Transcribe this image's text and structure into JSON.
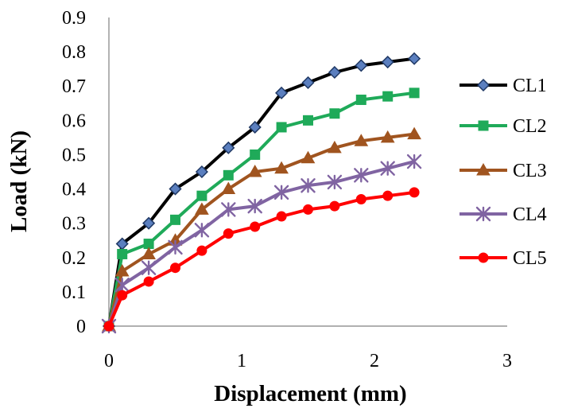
{
  "chart_data": {
    "type": "line",
    "xlabel": "Displacement (mm)",
    "ylabel": "Load (kN)",
    "xlim": [
      0,
      3
    ],
    "ylim": [
      0,
      0.9
    ],
    "x_ticks": [
      "0",
      "1",
      "2",
      "3"
    ],
    "y_ticks": [
      "0",
      "0.1",
      "0.2",
      "0.3",
      "0.4",
      "0.5",
      "0.6",
      "0.7",
      "0.8",
      "0.9"
    ],
    "grid": false,
    "legend_position": "right",
    "series": [
      {
        "name": "CL1",
        "color": "#000000",
        "marker_fill": "#5b7fbf",
        "marker": "diamond",
        "x": [
          0,
          0.1,
          0.3,
          0.5,
          0.7,
          0.9,
          1.1,
          1.3,
          1.5,
          1.7,
          1.9,
          2.1,
          2.3
        ],
        "y": [
          0,
          0.24,
          0.3,
          0.4,
          0.45,
          0.52,
          0.58,
          0.68,
          0.71,
          0.74,
          0.76,
          0.77,
          0.78
        ]
      },
      {
        "name": "CL2",
        "color": "#1faa59",
        "marker_fill": "#1faa59",
        "marker": "square",
        "x": [
          0,
          0.1,
          0.3,
          0.5,
          0.7,
          0.9,
          1.1,
          1.3,
          1.5,
          1.7,
          1.9,
          2.1,
          2.3
        ],
        "y": [
          0,
          0.21,
          0.24,
          0.31,
          0.38,
          0.44,
          0.5,
          0.58,
          0.6,
          0.62,
          0.66,
          0.67,
          0.68
        ]
      },
      {
        "name": "CL3",
        "color": "#a0541f",
        "marker_fill": "#a0541f",
        "marker": "triangle",
        "x": [
          0,
          0.1,
          0.3,
          0.5,
          0.7,
          0.9,
          1.1,
          1.3,
          1.5,
          1.7,
          1.9,
          2.1,
          2.3
        ],
        "y": [
          0,
          0.16,
          0.21,
          0.25,
          0.34,
          0.4,
          0.45,
          0.46,
          0.49,
          0.52,
          0.54,
          0.55,
          0.56
        ]
      },
      {
        "name": "CL4",
        "color": "#8064a2",
        "marker_fill": "#8064a2",
        "marker": "asterisk",
        "x": [
          0,
          0.1,
          0.3,
          0.5,
          0.7,
          0.9,
          1.1,
          1.3,
          1.5,
          1.7,
          1.9,
          2.1,
          2.3
        ],
        "y": [
          0,
          0.12,
          0.17,
          0.23,
          0.28,
          0.34,
          0.35,
          0.39,
          0.41,
          0.42,
          0.44,
          0.46,
          0.48
        ]
      },
      {
        "name": "CL5",
        "color": "#ff0000",
        "marker_fill": "#ff0000",
        "marker": "circle",
        "x": [
          0,
          0.1,
          0.3,
          0.5,
          0.7,
          0.9,
          1.1,
          1.3,
          1.5,
          1.7,
          1.9,
          2.1,
          2.3
        ],
        "y": [
          0,
          0.09,
          0.13,
          0.17,
          0.22,
          0.27,
          0.29,
          0.32,
          0.34,
          0.35,
          0.37,
          0.38,
          0.39
        ]
      }
    ]
  }
}
